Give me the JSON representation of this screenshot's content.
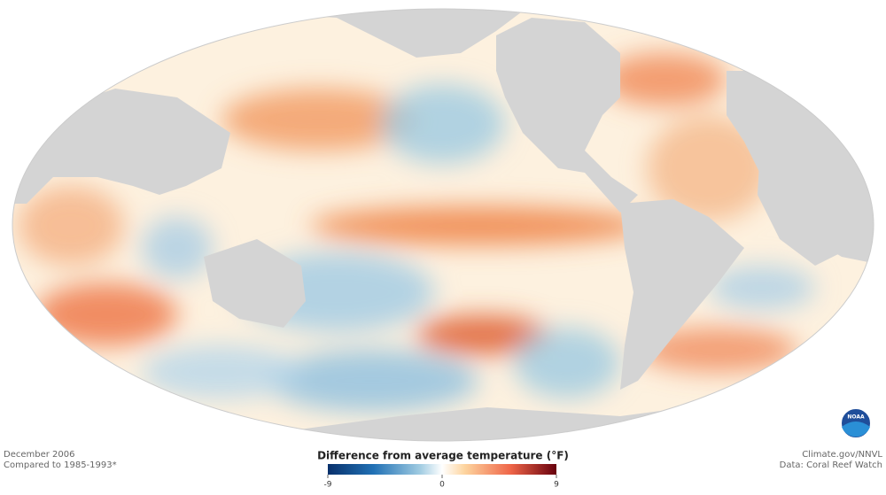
{
  "caption": {
    "date": "December 2006",
    "baseline": "Compared to 1985-1993*"
  },
  "credits": {
    "source": "Climate.gov/NNVL",
    "data": "Data: Coral Reef Watch"
  },
  "logo": {
    "label": "NOAA"
  },
  "legend": {
    "title": "Difference from average temperature (°F)",
    "lim": [
      -9,
      9
    ],
    "ticks": [
      -9,
      0,
      9
    ]
  }
}
